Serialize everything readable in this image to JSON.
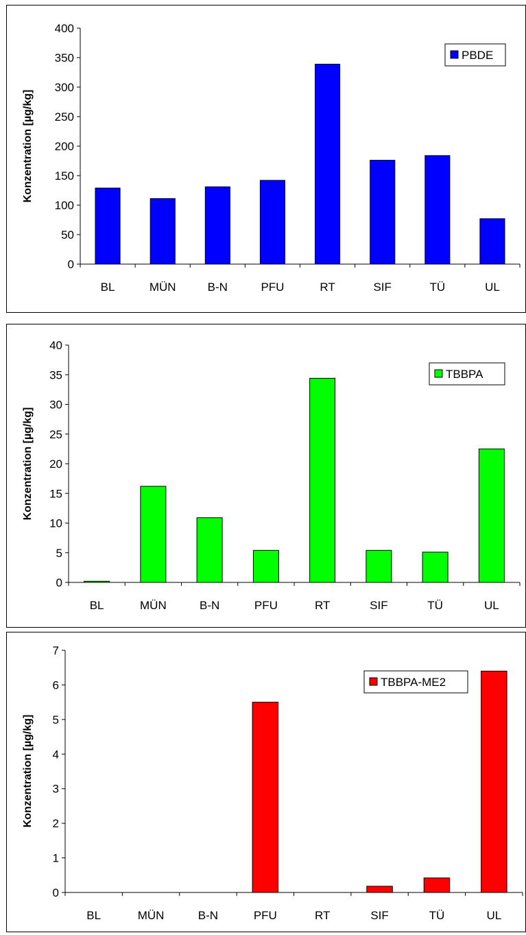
{
  "chart_data": [
    {
      "type": "bar",
      "categories": [
        "BL",
        "MÜN",
        "B-N",
        "PFU",
        "RT",
        "SIF",
        "TÜ",
        "UL"
      ],
      "series": [
        {
          "name": "PBDE",
          "values": [
            129,
            111,
            131,
            142,
            339,
            176,
            184,
            77
          ]
        }
      ],
      "ylabel": "Konzentration [µg/kg]",
      "ylim": [
        0,
        400
      ],
      "yticks": [
        0,
        50,
        100,
        150,
        200,
        250,
        300,
        350,
        400
      ],
      "legend": "top-right",
      "grid": false,
      "color": "#0000ff"
    },
    {
      "type": "bar",
      "categories": [
        "BL",
        "MÜN",
        "B-N",
        "PFU",
        "RT",
        "SIF",
        "TÜ",
        "UL"
      ],
      "series": [
        {
          "name": "TBBPA",
          "values": [
            0.2,
            16.2,
            10.9,
            5.4,
            34.4,
            5.4,
            5.1,
            22.5
          ]
        }
      ],
      "ylabel": "Konzentration [µg/kg]",
      "ylim": [
        0,
        40
      ],
      "yticks": [
        0,
        5,
        10,
        15,
        20,
        25,
        30,
        35,
        40
      ],
      "legend": "top-right",
      "grid": false,
      "color": "#00ff00"
    },
    {
      "type": "bar",
      "categories": [
        "BL",
        "MÜN",
        "B-N",
        "PFU",
        "RT",
        "SIF",
        "TÜ",
        "UL"
      ],
      "series": [
        {
          "name": "TBBPA-ME2",
          "values": [
            0,
            0,
            0,
            5.5,
            0,
            0.18,
            0.42,
            6.4
          ]
        }
      ],
      "ylabel": "Konzentration [µg/kg]",
      "ylim": [
        0,
        7
      ],
      "yticks": [
        0,
        1,
        2,
        3,
        4,
        5,
        6,
        7
      ],
      "legend": "top-right",
      "grid": false,
      "color": "#ff0000"
    }
  ]
}
